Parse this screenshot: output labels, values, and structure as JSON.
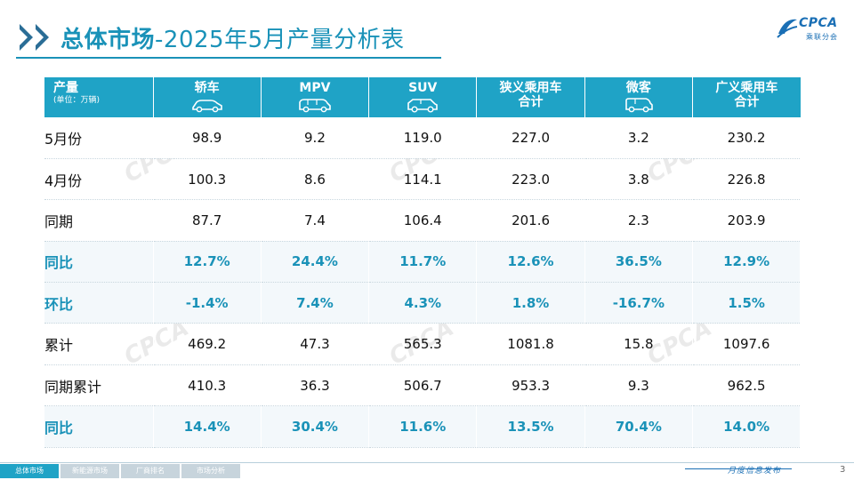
{
  "title": {
    "prefix": "总体市场",
    "rest": "-2025年5月产量分析表"
  },
  "logo": {
    "text": "CPCA",
    "sub": "乘联分会"
  },
  "table": {
    "header": {
      "corner": "产量",
      "unit": "(单位：万辆)",
      "columns": [
        {
          "line1": "轿车",
          "line2": "",
          "icon": "sedan-icon"
        },
        {
          "line1": "MPV",
          "line2": "",
          "icon": "mpv-icon"
        },
        {
          "line1": "SUV",
          "line2": "",
          "icon": "suv-icon"
        },
        {
          "line1": "狭义乘用车",
          "line2": "合计",
          "icon": ""
        },
        {
          "line1": "微客",
          "line2": "",
          "icon": "minivan-icon"
        },
        {
          "line1": "广义乘用车",
          "line2": "合计",
          "icon": ""
        }
      ]
    },
    "rows": [
      {
        "label": "5月份",
        "values": [
          "98.9",
          "9.2",
          "119.0",
          "227.0",
          "3.2",
          "230.2"
        ],
        "ratio": false
      },
      {
        "label": "4月份",
        "values": [
          "100.3",
          "8.6",
          "114.1",
          "223.0",
          "3.8",
          "226.8"
        ],
        "ratio": false
      },
      {
        "label": "同期",
        "values": [
          "87.7",
          "7.4",
          "106.4",
          "201.6",
          "2.3",
          "203.9"
        ],
        "ratio": false
      },
      {
        "label": "同比",
        "values": [
          "12.7%",
          "24.4%",
          "11.7%",
          "12.6%",
          "36.5%",
          "12.9%"
        ],
        "ratio": true
      },
      {
        "label": "环比",
        "values": [
          "-1.4%",
          "7.4%",
          "4.3%",
          "1.8%",
          "-16.7%",
          "1.5%"
        ],
        "ratio": true
      },
      {
        "label": "累计",
        "values": [
          "469.2",
          "47.3",
          "565.3",
          "1081.8",
          "15.8",
          "1097.6"
        ],
        "ratio": false
      },
      {
        "label": "同期累计",
        "values": [
          "410.3",
          "36.3",
          "506.7",
          "953.3",
          "9.3",
          "962.5"
        ],
        "ratio": false
      },
      {
        "label": "同比",
        "values": [
          "14.4%",
          "30.4%",
          "11.6%",
          "13.5%",
          "70.4%",
          "14.0%"
        ],
        "ratio": true
      }
    ]
  },
  "footer": {
    "tabs": [
      "总体市场",
      "新能源市场",
      "厂商排名",
      "市场分析"
    ],
    "active_tab": 0,
    "caption": "月度信息发布",
    "page_number": "3"
  },
  "colors": {
    "accent": "#1fa3c6",
    "title": "#1a92b8",
    "ratio_text": "#1a92b8",
    "dark_chevron": "#2a6d96"
  }
}
